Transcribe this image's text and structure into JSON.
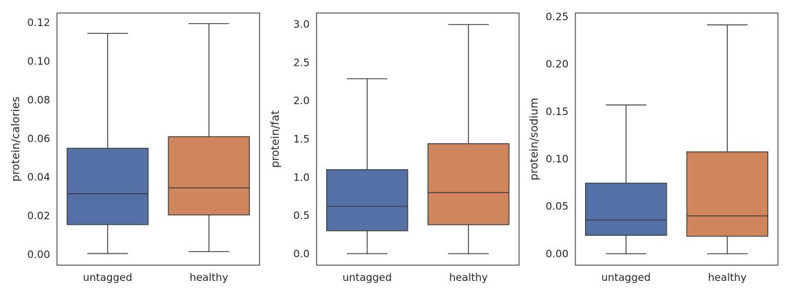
{
  "chart_data": [
    {
      "type": "box",
      "categories": [
        "untagged",
        "healthy"
      ],
      "ylabel": "protein/calories",
      "ylim": [
        -0.0055,
        0.125
      ],
      "yticks": [
        0.0,
        0.02,
        0.04,
        0.06,
        0.08,
        0.1,
        0.12
      ],
      "ytick_labels": [
        "0.00",
        "0.02",
        "0.04",
        "0.06",
        "0.08",
        "0.10",
        "0.12"
      ],
      "boxes": [
        {
          "category": "untagged",
          "whisker_low": 0.0005,
          "q1": 0.0155,
          "median": 0.0315,
          "q3": 0.055,
          "whisker_high": 0.1145,
          "color": "#5470a6"
        },
        {
          "category": "healthy",
          "whisker_low": 0.0015,
          "q1": 0.0205,
          "median": 0.0345,
          "q3": 0.061,
          "whisker_high": 0.1195,
          "color": "#cf865c"
        }
      ]
    },
    {
      "type": "box",
      "categories": [
        "untagged",
        "healthy"
      ],
      "ylabel": "protein/fat",
      "ylim": [
        -0.15,
        3.15
      ],
      "yticks": [
        0.0,
        0.5,
        1.0,
        1.5,
        2.0,
        2.5,
        3.0
      ],
      "ytick_labels": [
        "0.0",
        "0.5",
        "1.0",
        "1.5",
        "2.0",
        "2.5",
        "3.0"
      ],
      "boxes": [
        {
          "category": "untagged",
          "whisker_low": 0.0,
          "q1": 0.3,
          "median": 0.62,
          "q3": 1.1,
          "whisker_high": 2.29,
          "color": "#5470a6"
        },
        {
          "category": "healthy",
          "whisker_low": 0.0,
          "q1": 0.38,
          "median": 0.8,
          "q3": 1.44,
          "whisker_high": 3.0,
          "color": "#cf865c"
        }
      ]
    },
    {
      "type": "box",
      "categories": [
        "untagged",
        "healthy"
      ],
      "ylabel": "protein/sodium",
      "ylim": [
        -0.012,
        0.254
      ],
      "yticks": [
        0.0,
        0.05,
        0.1,
        0.15,
        0.2,
        0.25
      ],
      "ytick_labels": [
        "0.00",
        "0.05",
        "0.10",
        "0.15",
        "0.20",
        "0.25"
      ],
      "boxes": [
        {
          "category": "untagged",
          "whisker_low": 0.0,
          "q1": 0.0195,
          "median": 0.0355,
          "q3": 0.0745,
          "whisker_high": 0.157,
          "color": "#5470a6"
        },
        {
          "category": "healthy",
          "whisker_low": 0.0,
          "q1": 0.0185,
          "median": 0.04,
          "q3": 0.1075,
          "whisker_high": 0.2415,
          "color": "#cf865c"
        }
      ]
    }
  ]
}
